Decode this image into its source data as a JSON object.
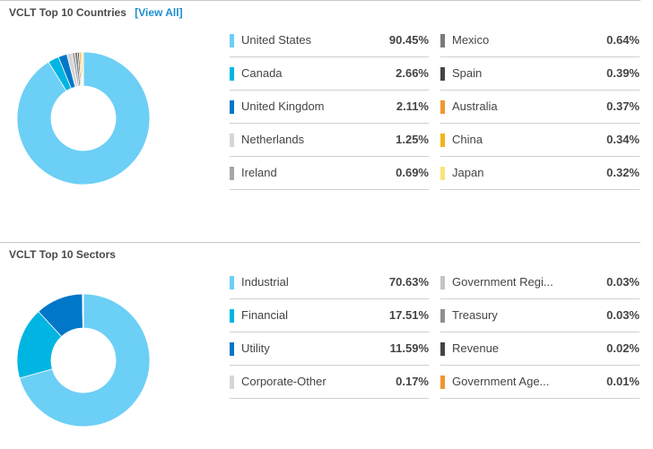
{
  "countries": {
    "title": "VCLT Top 10 Countries",
    "view_all": "[View All]"
  },
  "sectors": {
    "title": "VCLT Top 10 Sectors"
  },
  "chart_data": [
    {
      "type": "pie",
      "title": "VCLT Top 10 Countries",
      "categories": [
        "United States",
        "Canada",
        "United Kingdom",
        "Netherlands",
        "Ireland",
        "Mexico",
        "Spain",
        "Australia",
        "China",
        "Japan"
      ],
      "values": [
        90.45,
        2.66,
        2.11,
        1.25,
        0.69,
        0.64,
        0.39,
        0.37,
        0.34,
        0.32
      ],
      "labels": [
        "90.45%",
        "2.66%",
        "2.11%",
        "1.25%",
        "0.69%",
        "0.64%",
        "0.39%",
        "0.37%",
        "0.34%",
        "0.32%"
      ],
      "colors": [
        "#6ccff6",
        "#00b5e2",
        "#0077c8",
        "#d6d6d6",
        "#a7a7a7",
        "#7a7a7a",
        "#454545",
        "#f1962e",
        "#f4b41a",
        "#fbe37a"
      ]
    },
    {
      "type": "pie",
      "title": "VCLT Top 10 Sectors",
      "categories": [
        "Industrial",
        "Financial",
        "Utility",
        "Corporate-Other",
        "Government Regi...",
        "Treasury",
        "Revenue",
        "Government Age..."
      ],
      "values": [
        70.63,
        17.51,
        11.59,
        0.17,
        0.03,
        0.03,
        0.02,
        0.01
      ],
      "labels": [
        "70.63%",
        "17.51%",
        "11.59%",
        "0.17%",
        "0.03%",
        "0.03%",
        "0.02%",
        "0.01%"
      ],
      "colors": [
        "#6ccff6",
        "#00b5e2",
        "#0077c8",
        "#d6d6d6",
        "#c4c4c4",
        "#8f8f8f",
        "#454545",
        "#f1962e"
      ]
    }
  ]
}
